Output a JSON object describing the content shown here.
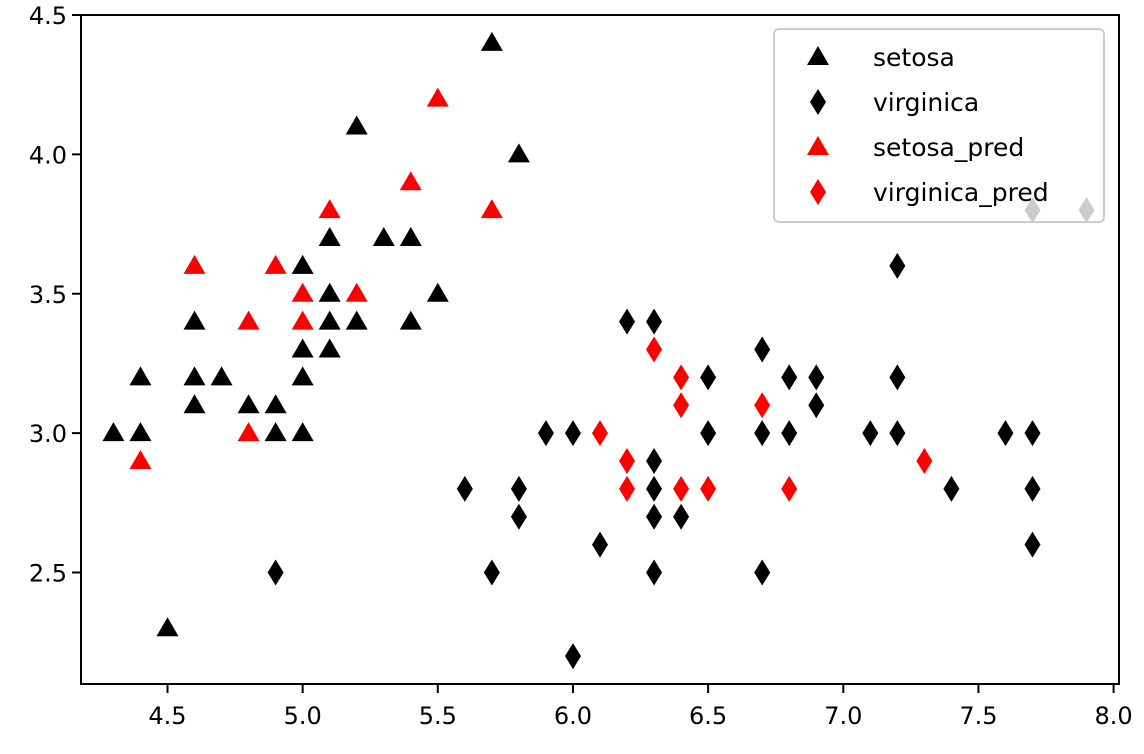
{
  "chart_data": {
    "type": "scatter",
    "title": "",
    "xlabel": "",
    "ylabel": "",
    "xlim": [
      4.18,
      8.02
    ],
    "ylim": [
      2.1,
      4.5
    ],
    "xticks": [
      "4.5",
      "5.0",
      "5.5",
      "6.0",
      "6.5",
      "7.0",
      "7.5",
      "8.0"
    ],
    "yticks": [
      "2.5",
      "3.0",
      "3.5",
      "4.0",
      "4.5"
    ],
    "grid": false,
    "legend_position": "top-right",
    "series": [
      {
        "name": "setosa",
        "marker": "triangle",
        "color": "#000000",
        "points": [
          [
            4.3,
            3.0
          ],
          [
            4.4,
            3.0
          ],
          [
            4.4,
            3.2
          ],
          [
            4.5,
            2.3
          ],
          [
            4.6,
            3.1
          ],
          [
            4.6,
            3.2
          ],
          [
            4.6,
            3.4
          ],
          [
            4.7,
            3.2
          ],
          [
            4.8,
            3.1
          ],
          [
            4.9,
            3.0
          ],
          [
            4.9,
            3.1
          ],
          [
            5.0,
            3.0
          ],
          [
            5.0,
            3.2
          ],
          [
            5.0,
            3.3
          ],
          [
            5.0,
            3.6
          ],
          [
            5.1,
            3.3
          ],
          [
            5.1,
            3.4
          ],
          [
            5.1,
            3.5
          ],
          [
            5.1,
            3.7
          ],
          [
            5.2,
            3.4
          ],
          [
            5.2,
            4.1
          ],
          [
            5.3,
            3.7
          ],
          [
            5.4,
            3.4
          ],
          [
            5.4,
            3.7
          ],
          [
            5.5,
            3.5
          ],
          [
            5.7,
            4.4
          ],
          [
            5.8,
            4.0
          ]
        ]
      },
      {
        "name": "virginica",
        "marker": "diamond",
        "color": "#000000",
        "points": [
          [
            4.9,
            2.5
          ],
          [
            5.6,
            2.8
          ],
          [
            5.7,
            2.5
          ],
          [
            5.8,
            2.7
          ],
          [
            5.8,
            2.8
          ],
          [
            5.9,
            3.0
          ],
          [
            6.0,
            2.2
          ],
          [
            6.0,
            3.0
          ],
          [
            6.1,
            2.6
          ],
          [
            6.2,
            3.4
          ],
          [
            6.3,
            2.5
          ],
          [
            6.3,
            2.7
          ],
          [
            6.3,
            2.8
          ],
          [
            6.3,
            2.9
          ],
          [
            6.3,
            3.4
          ],
          [
            6.4,
            2.7
          ],
          [
            6.5,
            3.0
          ],
          [
            6.5,
            3.2
          ],
          [
            6.7,
            2.5
          ],
          [
            6.7,
            3.0
          ],
          [
            6.7,
            3.3
          ],
          [
            6.8,
            3.0
          ],
          [
            6.8,
            3.2
          ],
          [
            6.9,
            3.1
          ],
          [
            6.9,
            3.2
          ],
          [
            7.1,
            3.0
          ],
          [
            7.2,
            3.0
          ],
          [
            7.2,
            3.2
          ],
          [
            7.2,
            3.6
          ],
          [
            7.4,
            2.8
          ],
          [
            7.6,
            3.0
          ],
          [
            7.7,
            2.6
          ],
          [
            7.7,
            2.8
          ],
          [
            7.7,
            3.0
          ],
          [
            7.7,
            3.8
          ],
          [
            7.9,
            3.8
          ]
        ]
      },
      {
        "name": "setosa_pred",
        "marker": "triangle",
        "color": "#ff0000",
        "points": [
          [
            4.4,
            2.9
          ],
          [
            4.6,
            3.6
          ],
          [
            4.8,
            3.0
          ],
          [
            4.8,
            3.4
          ],
          [
            4.9,
            3.6
          ],
          [
            5.0,
            3.4
          ],
          [
            5.0,
            3.5
          ],
          [
            5.1,
            3.8
          ],
          [
            5.2,
            3.5
          ],
          [
            5.4,
            3.9
          ],
          [
            5.5,
            4.2
          ],
          [
            5.7,
            3.8
          ]
        ]
      },
      {
        "name": "virginica_pred",
        "marker": "diamond",
        "color": "#ff0000",
        "points": [
          [
            6.1,
            3.0
          ],
          [
            6.2,
            2.8
          ],
          [
            6.2,
            2.9
          ],
          [
            6.3,
            3.3
          ],
          [
            6.4,
            2.8
          ],
          [
            6.4,
            3.1
          ],
          [
            6.4,
            3.2
          ],
          [
            6.5,
            2.8
          ],
          [
            6.7,
            3.1
          ],
          [
            6.8,
            2.8
          ],
          [
            7.3,
            2.9
          ]
        ]
      }
    ]
  }
}
